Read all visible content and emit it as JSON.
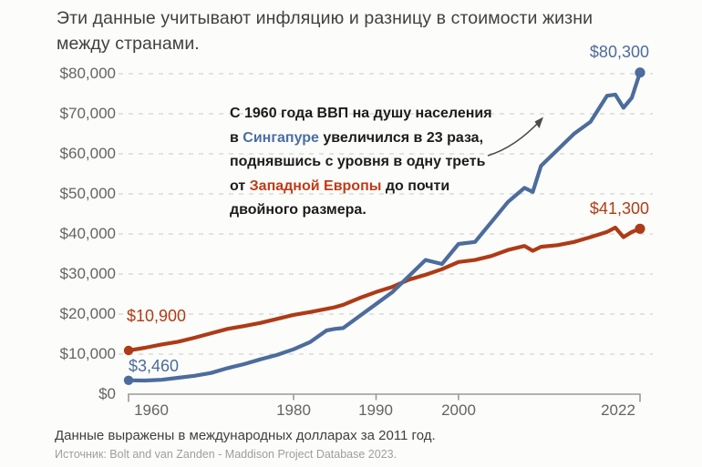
{
  "title": {
    "line1": "Эти данные учитывают инфляцию и разницу в стоимости жизни",
    "line2": "между странами."
  },
  "annotation": {
    "line1": "С 1960 года ВВП на душу населения",
    "line2_pre": "в ",
    "line2_highlight": "Сингапуре",
    "line2_post": " увеличился в 23 раза,",
    "line3": "поднявшись с уровня в одну треть",
    "line4_pre": "от ",
    "line4_highlight": "Западной Европы",
    "line4_post": " до почти",
    "line5": "двойного размера."
  },
  "footer": {
    "note": "Данные выражены в международных долларах за 2011 год.",
    "source": "Источник: Bolt and van Zanden - Maddison Project Database 2023."
  },
  "colors": {
    "singapore_blue": "#4c6c9c",
    "europe_red": "#ad3b17",
    "annotation_blue": "#4a6fa5",
    "annotation_red": "#bf3b17",
    "grid": "#d9d9d9",
    "axis": "#999999",
    "tick_text": "#646464",
    "arrow": "#4a4a4a"
  },
  "chart_data": {
    "type": "line",
    "title": "Эти данные учитывают инфляцию и разницу в стоимости жизни между странами.",
    "x": [
      1960,
      1962,
      1964,
      1966,
      1968,
      1970,
      1972,
      1974,
      1976,
      1978,
      1980,
      1982,
      1984,
      1985,
      1986,
      1988,
      1990,
      1992,
      1994,
      1996,
      1998,
      2000,
      2002,
      2004,
      2006,
      2008,
      2009,
      2010,
      2012,
      2014,
      2016,
      2018,
      2019,
      2020,
      2021,
      2022
    ],
    "series": [
      {
        "name": "Сингапур",
        "color": "#4c6c9c",
        "start_label": "$3,460",
        "end_label": "$80,300",
        "values": [
          3460,
          3400,
          3600,
          4100,
          4600,
          5300,
          6500,
          7500,
          8700,
          9800,
          11200,
          13000,
          15900,
          16300,
          16500,
          19500,
          22500,
          25500,
          29500,
          33500,
          32500,
          37500,
          38000,
          43000,
          48000,
          51500,
          50500,
          57000,
          61000,
          65000,
          68000,
          74500,
          74800,
          71500,
          74000,
          80300
        ]
      },
      {
        "name": "Западная Европа",
        "color": "#ad3b17",
        "start_label": "$10,900",
        "end_label": "$41,300",
        "values": [
          10900,
          11600,
          12400,
          13100,
          14100,
          15200,
          16300,
          17000,
          17800,
          18800,
          19800,
          20500,
          21300,
          21700,
          22300,
          24000,
          25500,
          26800,
          28600,
          29800,
          31200,
          33000,
          33500,
          34500,
          36000,
          37000,
          35800,
          36800,
          37200,
          38000,
          39200,
          40500,
          41600,
          39200,
          40500,
          41300
        ]
      }
    ],
    "x_axis": {
      "range": [
        1960,
        2022
      ],
      "ticks": [
        {
          "label": "1960",
          "year": 1960
        },
        {
          "label": "1980",
          "year": 1980
        },
        {
          "label": "1990",
          "year": 1990
        },
        {
          "label": "2000",
          "year": 2000
        },
        {
          "label": "2022",
          "year": 2022
        }
      ]
    },
    "y_axis": {
      "range": [
        0,
        80000
      ],
      "ticks": [
        0,
        10000,
        20000,
        30000,
        40000,
        50000,
        60000,
        70000,
        80000
      ],
      "tick_labels": [
        "$0",
        "$10,000",
        "$20,000",
        "$30,000",
        "$40,000",
        "$50,000",
        "$60,000",
        "$70,000",
        "$80,000"
      ]
    },
    "grid": true,
    "legend": false
  }
}
